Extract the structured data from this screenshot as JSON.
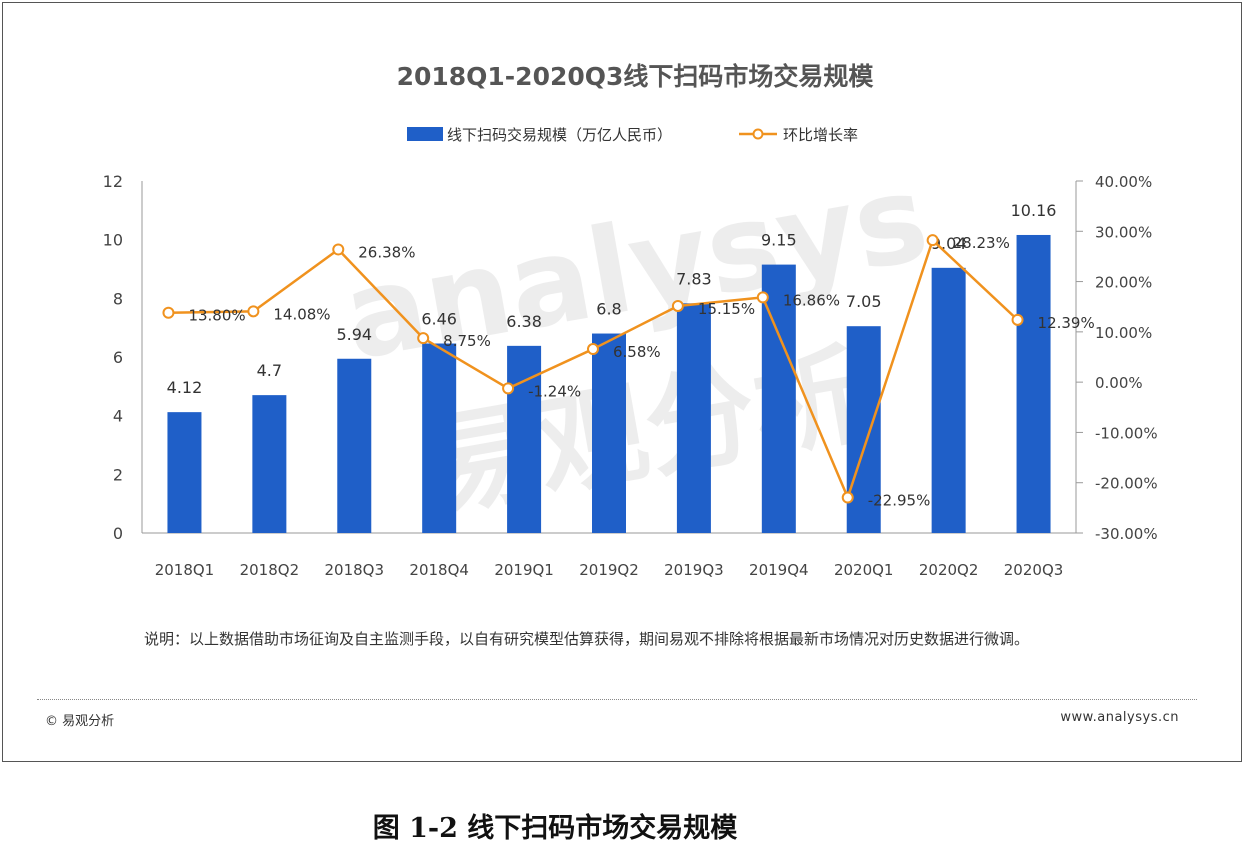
{
  "chart_data": {
    "type": "bar+line",
    "title": "2018Q1-2020Q3线下扫码市场交易规模",
    "categories": [
      "2018Q1",
      "2018Q2",
      "2018Q3",
      "2018Q4",
      "2019Q1",
      "2019Q2",
      "2019Q3",
      "2019Q4",
      "2020Q1",
      "2020Q2",
      "2020Q3"
    ],
    "series": [
      {
        "name": "线下扫码交易规模（万亿人民币）",
        "type": "bar",
        "axis": "left",
        "color": "#1f5fc8",
        "values": [
          4.12,
          4.7,
          5.94,
          6.46,
          6.38,
          6.8,
          7.83,
          9.15,
          7.05,
          9.04,
          10.16
        ],
        "labels": [
          "4.12",
          "4.7",
          "5.94",
          "6.46",
          "6.38",
          "6.8",
          "7.83",
          "9.15",
          "7.05",
          "9.04",
          "10.16"
        ]
      },
      {
        "name": "环比增长率",
        "type": "line",
        "axis": "right",
        "color": "#f0921e",
        "values": [
          13.8,
          14.08,
          26.38,
          8.75,
          -1.24,
          6.58,
          15.15,
          16.86,
          -22.95,
          28.23,
          12.39
        ],
        "labels": [
          "13.80%",
          "14.08%",
          "26.38%",
          "8.75%",
          "-1.24%",
          "6.58%",
          "15.15%",
          "16.86%",
          "-22.95%",
          "28.23%",
          "12.39%"
        ]
      }
    ],
    "ylim_left": [
      0,
      12
    ],
    "left_ticks": [
      "0",
      "2",
      "4",
      "6",
      "8",
      "10",
      "12"
    ],
    "ylim_right": [
      -30,
      40
    ],
    "right_ticks": [
      "-30.00%",
      "-20.00%",
      "-10.00%",
      "0.00%",
      "10.00%",
      "20.00%",
      "30.00%",
      "40.00%"
    ],
    "legend_position": "top-center",
    "grid": false
  },
  "note": "说明：以上数据借助市场征询及自主监测手段，以自有研究模型估算获得，期间易观不排除将根据最新市场情况对历史数据进行微调。",
  "footer": {
    "left": "© 易观分析",
    "right": "www.analysys.cn"
  },
  "caption": "图 1-2 线下扫码市场交易规模",
  "watermark": "analysys 易观分析"
}
